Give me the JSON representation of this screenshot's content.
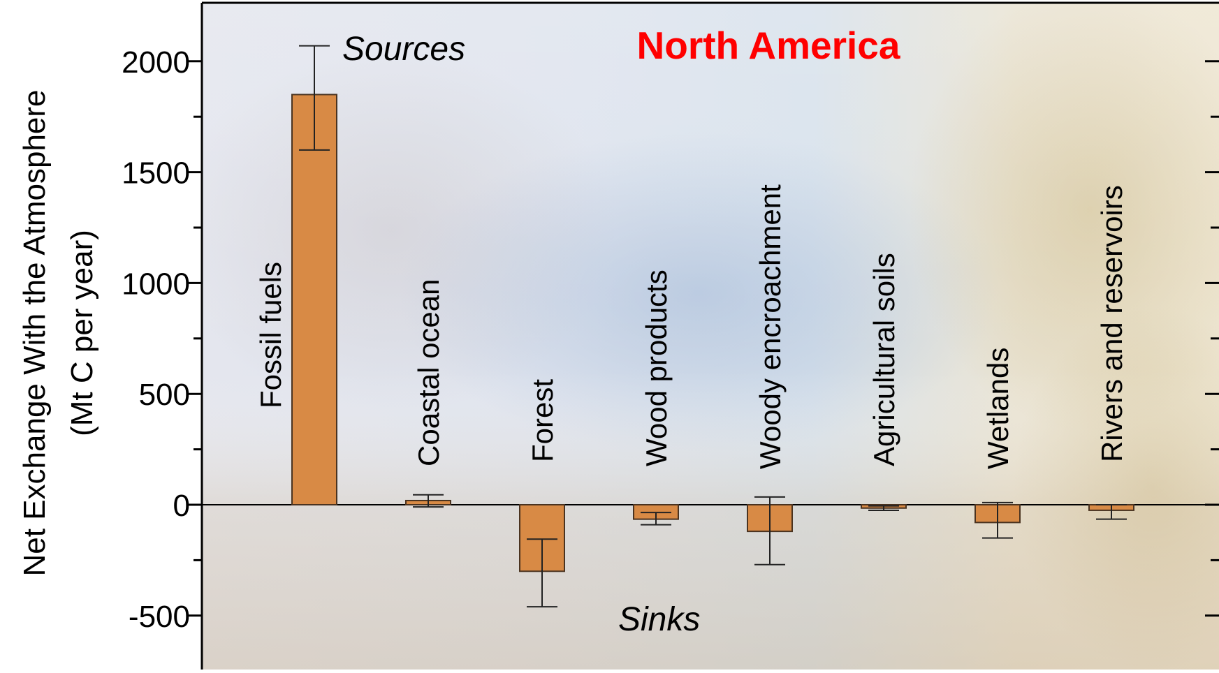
{
  "chart_data": {
    "type": "bar",
    "title": "North America",
    "ylabel_line1": "Net Exchange With the Atmosphere",
    "ylabel_line2": "(Mt C per year)",
    "xlabel": "",
    "ylim": [
      -750,
      2250
    ],
    "yticks": [
      -500,
      0,
      500,
      1000,
      1500,
      2000
    ],
    "yminor_ticks": [
      -250,
      250,
      750,
      1250,
      1750
    ],
    "grid": false,
    "annotations": {
      "sources": "Sources",
      "sinks": "Sinks"
    },
    "categories": [
      "Fossil fuels",
      "Coastal ocean",
      "Forest",
      "Wood products",
      "Woody encroachment",
      "Agricultural soils",
      "Wetlands",
      "Rivers and reservoirs"
    ],
    "values": [
      1850,
      19,
      -300,
      -65,
      -120,
      -15,
      -80,
      -25
    ],
    "error_low": [
      1600,
      -10,
      -460,
      -90,
      -270,
      -25,
      -150,
      -65
    ],
    "error_high": [
      2070,
      45,
      -155,
      -35,
      35,
      -5,
      10,
      0
    ],
    "colors": {
      "bar_fill": "#d88a45",
      "bar_stroke": "#4a3320",
      "title": "#ff0000",
      "axis": "#000000"
    }
  }
}
